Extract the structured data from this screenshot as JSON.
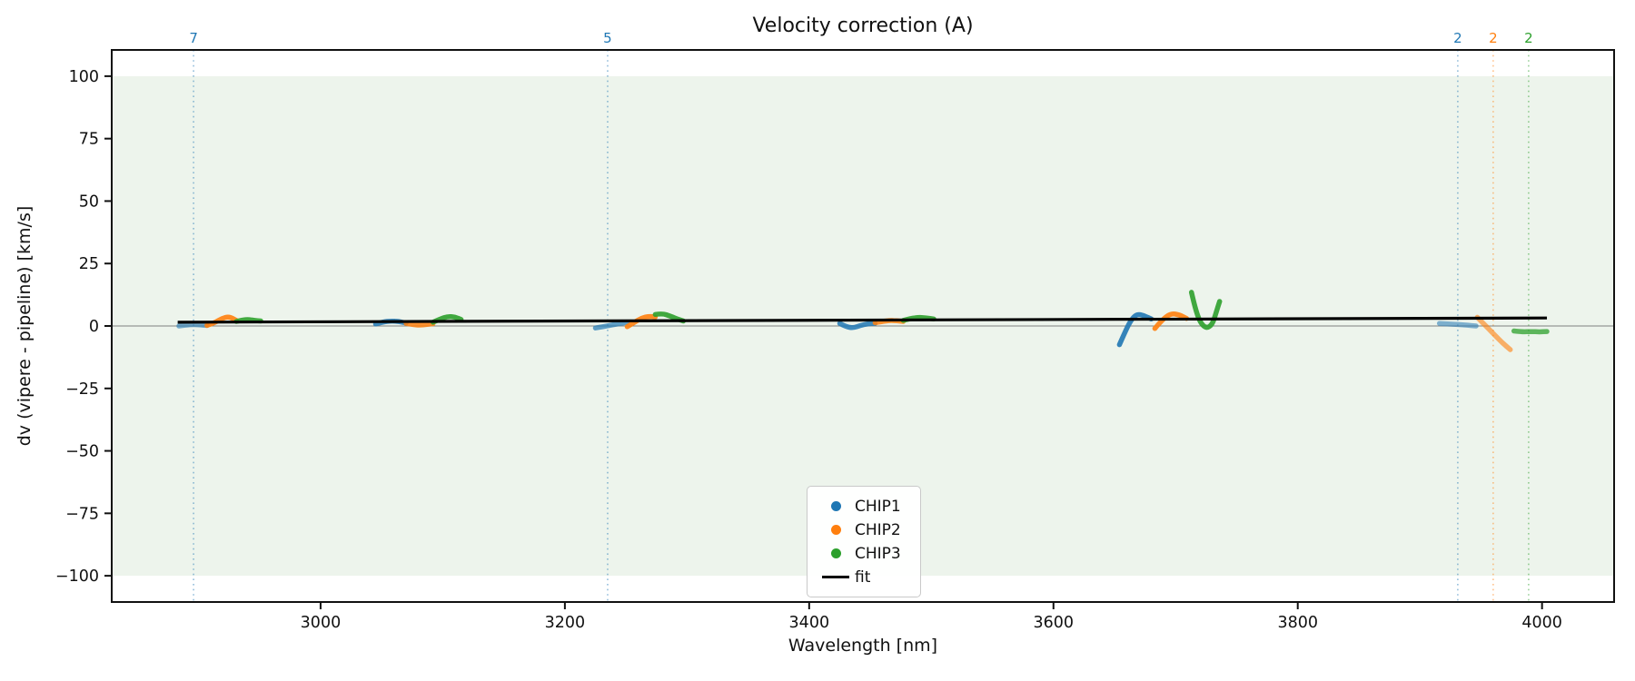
{
  "chart_data": {
    "type": "line",
    "title": "Velocity correction (A)",
    "xlabel": "Wavelength [nm]",
    "ylabel": "dv (vipere - pipeline) [km/s]",
    "xlim": [
      2829,
      4059
    ],
    "ylim": [
      -110.5,
      110.5
    ],
    "xticks": [
      3000,
      3200,
      3400,
      3600,
      3800,
      4000
    ],
    "yticks": [
      100,
      75,
      50,
      25,
      0,
      -25,
      -50,
      -75,
      -100
    ],
    "grid": false,
    "shaded_band": {
      "ymin": -100,
      "ymax": 100,
      "color": "#edf4ec"
    },
    "zero_line": {
      "y": 0,
      "color": "#808080"
    },
    "vlines": [
      {
        "x": 2896,
        "label": "7",
        "series": "CHIP1",
        "color": "#1f77b4"
      },
      {
        "x": 3235,
        "label": "5",
        "series": "CHIP1",
        "color": "#1f77b4"
      },
      {
        "x": 3931,
        "label": "2",
        "series": "CHIP1",
        "color": "#1f77b4"
      },
      {
        "x": 3960,
        "label": "2",
        "series": "CHIP2",
        "color": "#ff7f0e"
      },
      {
        "x": 3989,
        "label": "2",
        "series": "CHIP3",
        "color": "#2ca02c"
      }
    ],
    "fit": {
      "label": "fit",
      "color": "#000000",
      "x": [
        2883,
        4004
      ],
      "y": [
        1.5,
        3.2
      ]
    },
    "series": [
      {
        "name": "CHIP1",
        "color": "#1f77b4",
        "segments": [
          {
            "opacity": 0.6,
            "x": [
              2884,
              2890,
              2896,
              2902,
              2907
            ],
            "y": [
              0.0,
              0.4,
              0.6,
              0.4,
              0.2
            ]
          },
          {
            "opacity": 0.85,
            "x": [
              3045,
              3051,
              3058,
              3064,
              3070
            ],
            "y": [
              0.8,
              1.6,
              2.0,
              1.8,
              1.2
            ]
          },
          {
            "opacity": 0.7,
            "x": [
              3225,
              3232,
              3239,
              3245,
              3251
            ],
            "y": [
              -0.8,
              -0.2,
              0.4,
              1.0,
              1.4
            ]
          },
          {
            "opacity": 0.85,
            "x": [
              3425,
              3430,
              3436,
              3442,
              3448,
              3454
            ],
            "y": [
              1.0,
              -0.3,
              -0.8,
              0.2,
              0.9,
              1.1
            ]
          },
          {
            "opacity": 0.9,
            "x": [
              3654,
              3658,
              3663,
              3668,
              3674,
              3680
            ],
            "y": [
              -7.5,
              -3.0,
              2.0,
              4.8,
              4.2,
              2.8
            ]
          },
          {
            "opacity": 0.55,
            "x": [
              3916,
              3924,
              3931,
              3939,
              3946
            ],
            "y": [
              1.0,
              0.8,
              0.6,
              0.3,
              0.0
            ]
          }
        ]
      },
      {
        "name": "CHIP2",
        "color": "#ff7f0e",
        "segments": [
          {
            "opacity": 0.9,
            "x": [
              2907,
              2913,
              2919,
              2925,
              2931
            ],
            "y": [
              0.2,
              1.2,
              3.0,
              3.8,
              2.2
            ]
          },
          {
            "opacity": 0.85,
            "x": [
              3070,
              3076,
              3081,
              3087,
              3092
            ],
            "y": [
              1.0,
              0.5,
              0.3,
              0.6,
              0.9
            ]
          },
          {
            "opacity": 0.9,
            "x": [
              3251,
              3257,
              3263,
              3269,
              3274
            ],
            "y": [
              -0.3,
              1.5,
              3.2,
              3.9,
              3.6
            ]
          },
          {
            "opacity": 0.85,
            "x": [
              3454,
              3460,
              3466,
              3472,
              3477
            ],
            "y": [
              1.3,
              1.8,
              2.2,
              2.1,
              1.8
            ]
          },
          {
            "opacity": 0.9,
            "x": [
              3683,
              3689,
              3696,
              3703,
              3709
            ],
            "y": [
              -1.0,
              2.5,
              5.0,
              4.5,
              3.0
            ]
          },
          {
            "opacity": 0.6,
            "x": [
              3947,
              3953,
              3960,
              3967,
              3974
            ],
            "y": [
              3.5,
              0.5,
              -3.0,
              -6.5,
              -9.5
            ]
          }
        ]
      },
      {
        "name": "CHIP3",
        "color": "#2ca02c",
        "segments": [
          {
            "opacity": 0.9,
            "x": [
              2931,
              2936,
              2941,
              2946,
              2951
            ],
            "y": [
              1.8,
              2.4,
              2.6,
              2.2,
              2.0
            ]
          },
          {
            "opacity": 0.9,
            "x": [
              3092,
              3098,
              3104,
              3110,
              3115
            ],
            "y": [
              1.5,
              2.8,
              3.8,
              3.6,
              2.6
            ]
          },
          {
            "opacity": 0.9,
            "x": [
              3274,
              3280,
              3286,
              3292,
              3297
            ],
            "y": [
              4.6,
              5.0,
              4.0,
              2.8,
              2.0
            ]
          },
          {
            "opacity": 0.9,
            "x": [
              3477,
              3483,
              3490,
              3496,
              3502
            ],
            "y": [
              2.2,
              3.0,
              3.5,
              3.2,
              2.8
            ]
          },
          {
            "opacity": 0.9,
            "x": [
              3713,
              3716,
              3720,
              3725,
              3730,
              3733,
              3736
            ],
            "y": [
              13.5,
              7.0,
              1.5,
              -1.0,
              0.5,
              5.0,
              9.8
            ]
          },
          {
            "opacity": 0.75,
            "x": [
              3977,
              3984,
              3991,
              3998,
              4004
            ],
            "y": [
              -2.0,
              -2.4,
              -2.2,
              -2.4,
              -2.2
            ]
          }
        ]
      }
    ],
    "legend": {
      "position": "lower center",
      "entries": [
        {
          "label": "CHIP1",
          "color": "#1f77b4",
          "marker": "dot"
        },
        {
          "label": "CHIP2",
          "color": "#ff7f0e",
          "marker": "dot"
        },
        {
          "label": "CHIP3",
          "color": "#2ca02c",
          "marker": "dot"
        },
        {
          "label": "fit",
          "color": "#000000",
          "marker": "line"
        }
      ]
    }
  }
}
